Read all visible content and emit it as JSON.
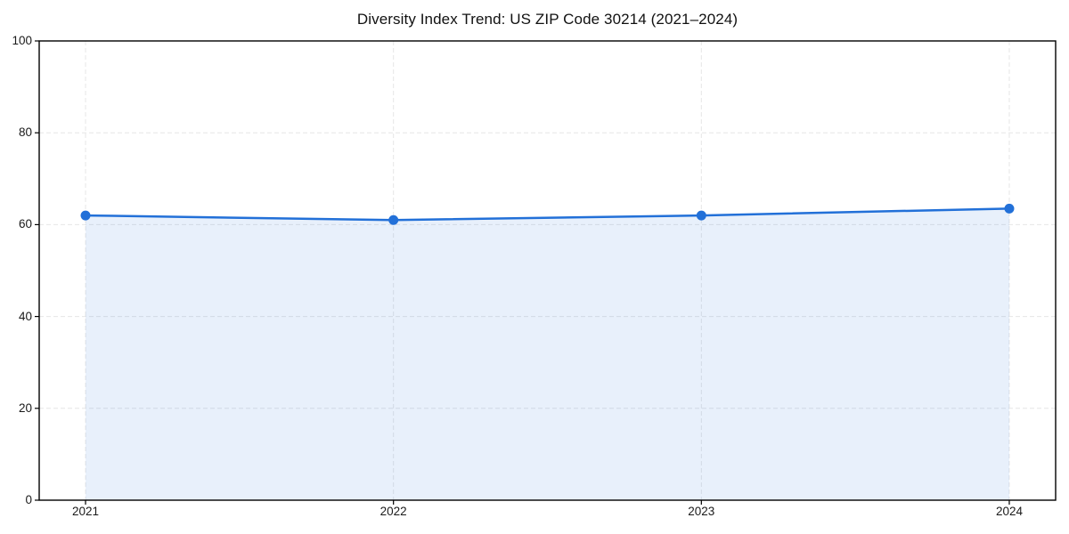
{
  "chart_data": {
    "type": "area",
    "title": "Diversity Index Trend: US ZIP Code 30214 (2021–2024)",
    "categories": [
      "2021",
      "2022",
      "2023",
      "2024"
    ],
    "series": [
      {
        "name": "Diversity Index",
        "values": [
          62,
          61,
          62,
          63.5
        ]
      }
    ],
    "xlabel": "",
    "ylabel": "",
    "ylim": [
      0,
      100
    ],
    "yticks": [
      0,
      20,
      40,
      60,
      80,
      100
    ],
    "grid": true,
    "grid_style": "dashed",
    "legend": false,
    "colors": {
      "line": "#2270d8",
      "marker": "#2270d8",
      "fill": "rgba(34,112,216,0.10)",
      "grid": "#e6e6e6",
      "spine": "#000000",
      "text": "#1a1a1a"
    }
  }
}
